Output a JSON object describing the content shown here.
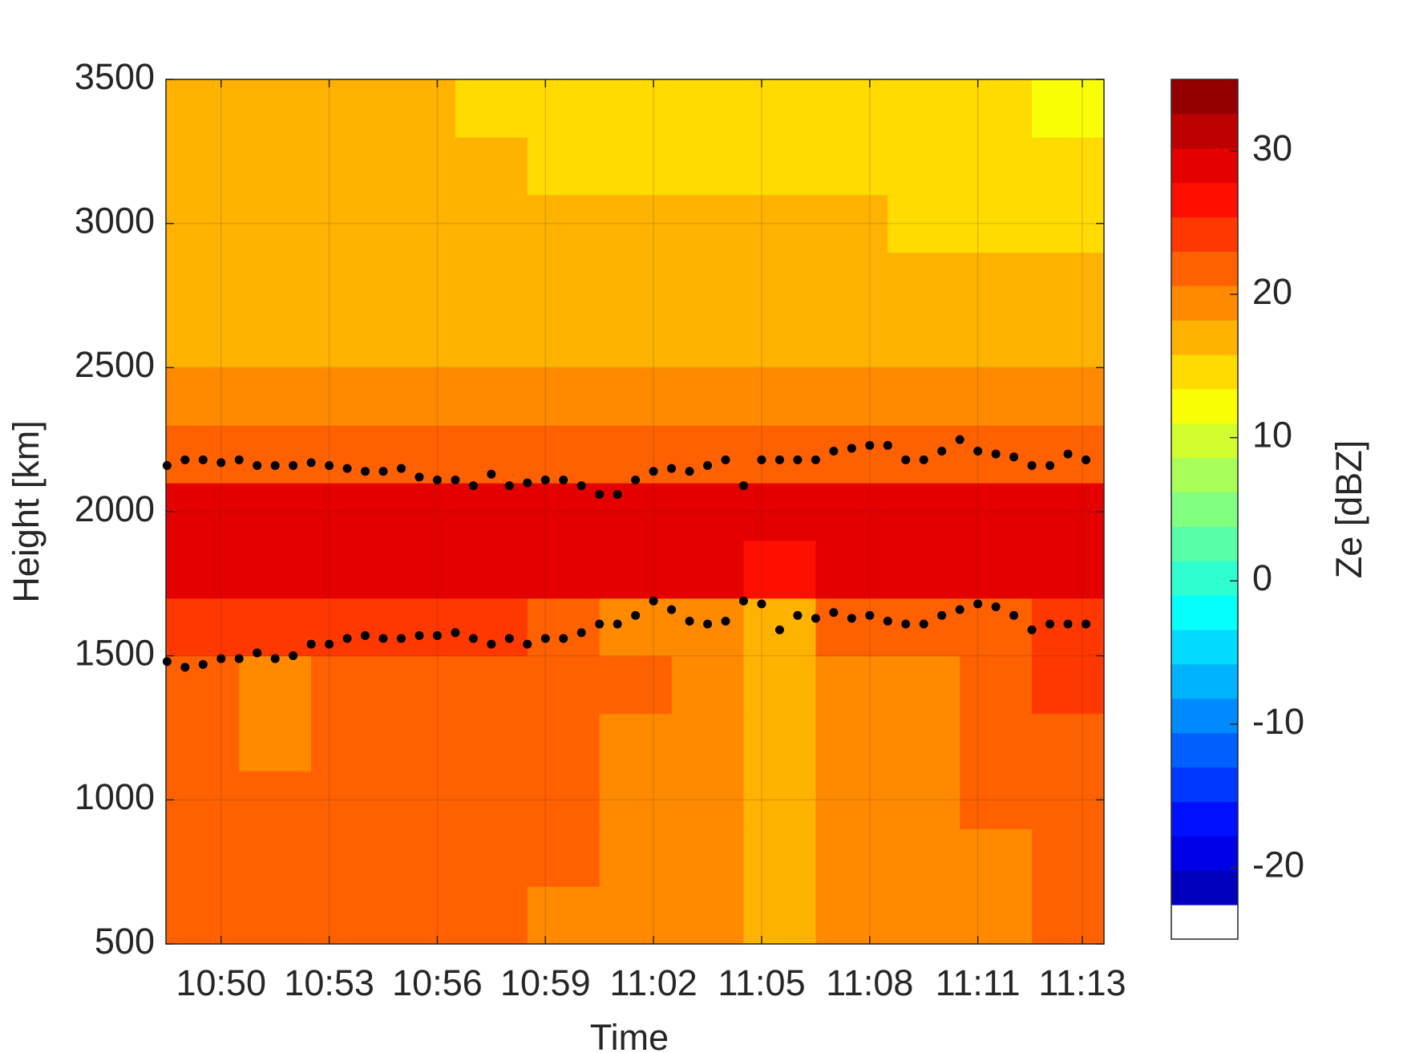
{
  "chart_data": {
    "type": "heatmap",
    "x_label": "Time",
    "y_label": "Height [km]",
    "colorbar_label": "Ze [dBZ]",
    "colormap": "jet",
    "levels": 25,
    "clim": [
      -25,
      35
    ],
    "cticks": [
      -20,
      -10,
      0,
      10,
      20,
      30
    ],
    "xlim": [
      648.47,
      674.5
    ],
    "ylim": [
      500,
      3500
    ],
    "xticks": [
      {
        "value": 650,
        "label": "10:50"
      },
      {
        "value": 653,
        "label": "10:53"
      },
      {
        "value": 656,
        "label": "10:56"
      },
      {
        "value": 659,
        "label": "10:59"
      },
      {
        "value": 662,
        "label": "11:02"
      },
      {
        "value": 665,
        "label": "11:05"
      },
      {
        "value": 668,
        "label": "11:08"
      },
      {
        "value": 671,
        "label": "11:11"
      },
      {
        "value": 673.9,
        "label": "11:13"
      }
    ],
    "yticks": [
      500,
      1000,
      1500,
      2000,
      2500,
      3000,
      3500
    ],
    "grid": true,
    "x_bins": [
      648.5,
      650.5,
      652.5,
      654.5,
      656.5,
      658.5,
      660.5,
      662.5,
      664.5,
      666.5,
      668.5,
      670.5,
      672.5,
      674.5
    ],
    "y_bins": [
      500,
      700,
      900,
      1100,
      1300,
      1500,
      1700,
      1900,
      2100,
      2300,
      2500,
      2700,
      2900,
      3100,
      3300,
      3500
    ],
    "z": [
      [
        21,
        21,
        21,
        21,
        21,
        20,
        19,
        19,
        18,
        19,
        19,
        20,
        21
      ],
      [
        21,
        21,
        21,
        21,
        21,
        21,
        20,
        19,
        18,
        19,
        20,
        20,
        21
      ],
      [
        21,
        21,
        21,
        21,
        22,
        21,
        20,
        19,
        18,
        19,
        20,
        21,
        22
      ],
      [
        21,
        20,
        21,
        21,
        22,
        22,
        20,
        19,
        18,
        19,
        20,
        21,
        22
      ],
      [
        21,
        20,
        21,
        21,
        21,
        22,
        21,
        19,
        18,
        19,
        20,
        21,
        23
      ],
      [
        24,
        24,
        24,
        23,
        23,
        22,
        20,
        20,
        18,
        21,
        22,
        22,
        24
      ],
      [
        30,
        30,
        30,
        30,
        30,
        29,
        28,
        29,
        27,
        29,
        30,
        30,
        30
      ],
      [
        29,
        30,
        29,
        29,
        29,
        28,
        28,
        28,
        30,
        30,
        29,
        29,
        29
      ],
      [
        21,
        21,
        21,
        21,
        21,
        21,
        21,
        21,
        22,
        22,
        21,
        21,
        21
      ],
      [
        19,
        19,
        19,
        19,
        19,
        19,
        19,
        19,
        20,
        19,
        19,
        19,
        19
      ],
      [
        18,
        18,
        18,
        18,
        18,
        18,
        18,
        18,
        18,
        18,
        18,
        18,
        18
      ],
      [
        17,
        17,
        17,
        17,
        17,
        17,
        17,
        17,
        17,
        17,
        16,
        16,
        16
      ],
      [
        17,
        17,
        16,
        16,
        16,
        16,
        16,
        16,
        16,
        16,
        15,
        15,
        15
      ],
      [
        16,
        16,
        16,
        16,
        16,
        15,
        15,
        15,
        15,
        15,
        15,
        15,
        14
      ],
      [
        16,
        16,
        16,
        16,
        15,
        15,
        15,
        15,
        14,
        14,
        14,
        14,
        13
      ]
    ],
    "x": [
      648.5,
      649,
      649.5,
      650,
      650.5,
      651,
      651.5,
      652,
      652.5,
      653,
      653.5,
      654,
      654.5,
      655,
      655.5,
      656,
      656.5,
      657,
      657.5,
      658,
      658.5,
      659,
      659.5,
      660,
      660.5,
      661,
      661.5,
      662,
      662.5,
      663,
      663.5,
      664,
      664.5,
      665,
      665.5,
      666,
      666.5,
      667,
      667.5,
      668,
      668.5,
      669,
      669.5,
      670,
      670.5,
      671,
      671.5,
      672,
      672.5,
      673,
      673.5,
      674
    ],
    "series": [
      {
        "color": "#000000",
        "values": [
          2160,
          2180,
          2180,
          2170,
          2180,
          2160,
          2160,
          2160,
          2170,
          2160,
          2150,
          2140,
          2140,
          2150,
          2120,
          2110,
          2110,
          2090,
          2130,
          2090,
          2100,
          2110,
          2110,
          2090,
          2060,
          2060,
          2110,
          2140,
          2150,
          2140,
          2160,
          2180,
          2090,
          2180,
          2180,
          2180,
          2180,
          2210,
          2220,
          2230,
          2230,
          2180,
          2180,
          2210,
          2250,
          2210,
          2200,
          2190,
          2160,
          2160,
          2200,
          2180
        ]
      },
      {
        "color": "#000000",
        "values": [
          1480,
          1460,
          1470,
          1490,
          1490,
          1510,
          1490,
          1500,
          1540,
          1540,
          1560,
          1570,
          1560,
          1560,
          1570,
          1570,
          1580,
          1560,
          1540,
          1560,
          1540,
          1560,
          1560,
          1580,
          1610,
          1610,
          1640,
          1690,
          1660,
          1620,
          1610,
          1620,
          1690,
          1680,
          1590,
          1640,
          1630,
          1650,
          1630,
          1640,
          1620,
          1610,
          1610,
          1640,
          1660,
          1680,
          1670,
          1640,
          1590,
          1610,
          1610,
          1610
        ]
      }
    ]
  }
}
